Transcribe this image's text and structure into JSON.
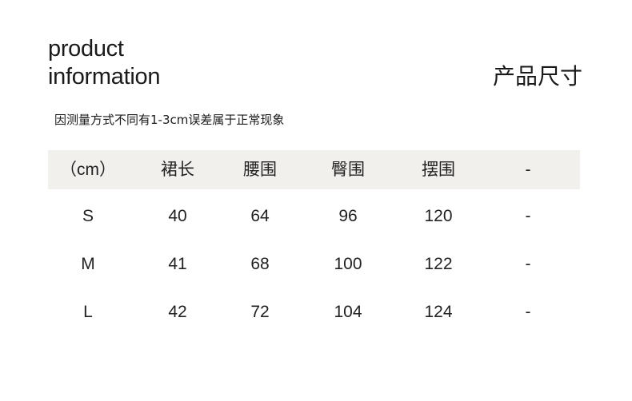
{
  "title_en": [
    "product",
    "information"
  ],
  "title_cn": "产品尺寸",
  "note": "因测量方式不同有1-3cm误差属于正常现象",
  "table": {
    "headers": [
      "（cm）",
      "裙长",
      "腰围",
      "臀围",
      "摆围",
      "-"
    ],
    "rows": [
      [
        "S",
        "40",
        "64",
        "96",
        "120",
        "-"
      ],
      [
        "M",
        "41",
        "68",
        "100",
        "122",
        "-"
      ],
      [
        "L",
        "42",
        "72",
        "104",
        "124",
        "-"
      ]
    ]
  },
  "colors": {
    "header_bg": "#f2f0ed",
    "text": "#1a1a1a"
  }
}
